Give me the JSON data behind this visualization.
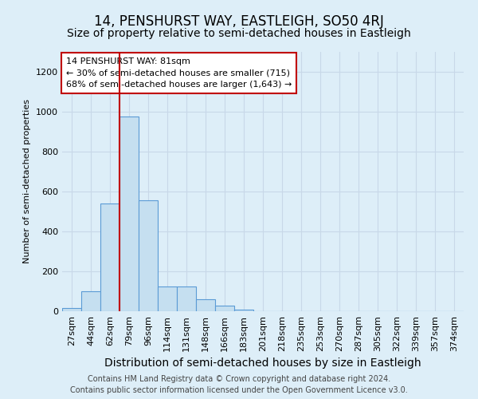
{
  "title": "14, PENSHURST WAY, EASTLEIGH, SO50 4RJ",
  "subtitle": "Size of property relative to semi-detached houses in Eastleigh",
  "xlabel": "Distribution of semi-detached houses by size in Eastleigh",
  "ylabel": "Number of semi-detached properties",
  "categories": [
    "27sqm",
    "44sqm",
    "62sqm",
    "79sqm",
    "96sqm",
    "114sqm",
    "131sqm",
    "148sqm",
    "166sqm",
    "183sqm",
    "201sqm",
    "218sqm",
    "235sqm",
    "253sqm",
    "270sqm",
    "287sqm",
    "305sqm",
    "322sqm",
    "339sqm",
    "357sqm",
    "374sqm"
  ],
  "values": [
    15,
    100,
    540,
    975,
    555,
    125,
    125,
    60,
    30,
    10,
    2,
    0,
    0,
    0,
    0,
    0,
    0,
    0,
    0,
    0,
    0
  ],
  "bar_color": "#c5dff0",
  "bar_edge_color": "#5b9bd5",
  "vline_color": "#c00000",
  "vline_x_index": 3,
  "annotation_text": "14 PENSHURST WAY: 81sqm\n← 30% of semi-detached houses are smaller (715)\n68% of semi-detached houses are larger (1,643) →",
  "annotation_box_facecolor": "#ffffff",
  "annotation_box_edgecolor": "#c00000",
  "ylim": [
    0,
    1300
  ],
  "yticks": [
    0,
    200,
    400,
    600,
    800,
    1000,
    1200
  ],
  "grid_color": "#c8d8e8",
  "background_color": "#ddeef8",
  "footer_line1": "Contains HM Land Registry data © Crown copyright and database right 2024.",
  "footer_line2": "Contains public sector information licensed under the Open Government Licence v3.0.",
  "title_fontsize": 12,
  "subtitle_fontsize": 10,
  "xlabel_fontsize": 10,
  "ylabel_fontsize": 8,
  "tick_fontsize": 8,
  "annotation_fontsize": 8,
  "footer_fontsize": 7
}
